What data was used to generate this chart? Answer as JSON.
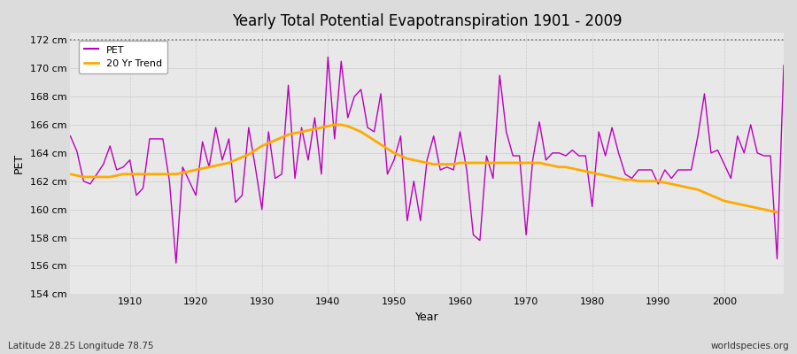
{
  "title": "Yearly Total Potential Evapotranspiration 1901 - 2009",
  "ylabel": "PET",
  "xlabel": "Year",
  "lat_lon_label": "Latitude 28.25 Longitude 78.75",
  "watermark": "worldspecies.org",
  "pet_color": "#bb00bb",
  "trend_color": "#ffaa00",
  "background_color": "#dcdcdc",
  "plot_bg_color": "#e8e8e8",
  "ylim": [
    154,
    172.5
  ],
  "years": [
    1901,
    1902,
    1903,
    1904,
    1905,
    1906,
    1907,
    1908,
    1909,
    1910,
    1911,
    1912,
    1913,
    1914,
    1915,
    1916,
    1917,
    1918,
    1919,
    1920,
    1921,
    1922,
    1923,
    1924,
    1925,
    1926,
    1927,
    1928,
    1929,
    1930,
    1931,
    1932,
    1933,
    1934,
    1935,
    1936,
    1937,
    1938,
    1939,
    1940,
    1941,
    1942,
    1943,
    1944,
    1945,
    1946,
    1947,
    1948,
    1949,
    1950,
    1951,
    1952,
    1953,
    1954,
    1955,
    1956,
    1957,
    1958,
    1959,
    1960,
    1961,
    1962,
    1963,
    1964,
    1965,
    1966,
    1967,
    1968,
    1969,
    1970,
    1971,
    1972,
    1973,
    1974,
    1975,
    1976,
    1977,
    1978,
    1979,
    1980,
    1981,
    1982,
    1983,
    1984,
    1985,
    1986,
    1987,
    1988,
    1989,
    1990,
    1991,
    1992,
    1993,
    1994,
    1995,
    1996,
    1997,
    1998,
    1999,
    2000,
    2001,
    2002,
    2003,
    2004,
    2005,
    2006,
    2007,
    2008,
    2009
  ],
  "pet_values": [
    165.2,
    164.1,
    162.0,
    161.8,
    162.5,
    163.2,
    164.5,
    162.8,
    163.0,
    163.5,
    161.0,
    161.5,
    165.0,
    165.0,
    165.0,
    162.0,
    156.2,
    163.0,
    162.0,
    161.0,
    164.8,
    163.0,
    165.8,
    163.5,
    165.0,
    160.5,
    161.0,
    165.8,
    163.0,
    160.0,
    165.5,
    162.2,
    162.5,
    168.8,
    162.2,
    165.8,
    163.5,
    166.5,
    162.5,
    170.8,
    165.0,
    170.5,
    166.5,
    168.0,
    168.5,
    165.8,
    165.5,
    168.2,
    162.5,
    163.5,
    165.2,
    159.2,
    162.0,
    159.2,
    163.5,
    165.2,
    162.8,
    163.0,
    162.8,
    165.5,
    162.8,
    158.2,
    157.8,
    163.8,
    162.2,
    169.5,
    165.5,
    163.8,
    163.8,
    158.2,
    163.5,
    166.2,
    163.5,
    164.0,
    164.0,
    163.8,
    164.2,
    163.8,
    163.8,
    160.2,
    165.5,
    163.8,
    165.8,
    164.0,
    162.5,
    162.2,
    162.8,
    162.8,
    162.8,
    161.8,
    162.8,
    162.2,
    162.8,
    162.8,
    162.8,
    165.2,
    168.2,
    164.0,
    164.2,
    163.2,
    162.2,
    165.2,
    164.0,
    166.0,
    164.0,
    163.8,
    163.8,
    156.5,
    170.2
  ],
  "trend_values": [
    162.5,
    162.4,
    162.3,
    162.3,
    162.3,
    162.3,
    162.3,
    162.4,
    162.5,
    162.5,
    162.5,
    162.5,
    162.5,
    162.5,
    162.5,
    162.5,
    162.5,
    162.6,
    162.7,
    162.8,
    162.9,
    163.0,
    163.1,
    163.2,
    163.3,
    163.5,
    163.7,
    163.9,
    164.2,
    164.5,
    164.7,
    164.9,
    165.1,
    165.3,
    165.4,
    165.5,
    165.6,
    165.7,
    165.8,
    165.9,
    166.0,
    166.0,
    165.9,
    165.7,
    165.5,
    165.2,
    164.9,
    164.6,
    164.3,
    164.0,
    163.8,
    163.6,
    163.5,
    163.4,
    163.3,
    163.2,
    163.2,
    163.2,
    163.2,
    163.3,
    163.3,
    163.3,
    163.3,
    163.3,
    163.3,
    163.3,
    163.3,
    163.3,
    163.3,
    163.3,
    163.3,
    163.3,
    163.2,
    163.1,
    163.0,
    163.0,
    162.9,
    162.8,
    162.7,
    162.6,
    162.5,
    162.4,
    162.3,
    162.2,
    162.1,
    162.1,
    162.0,
    162.0,
    162.0,
    162.0,
    161.9,
    161.8,
    161.7,
    161.6,
    161.5,
    161.4,
    161.2,
    161.0,
    160.8,
    160.6,
    160.5,
    160.4,
    160.3,
    160.2,
    160.1,
    160.0,
    159.9,
    159.8,
    null
  ]
}
